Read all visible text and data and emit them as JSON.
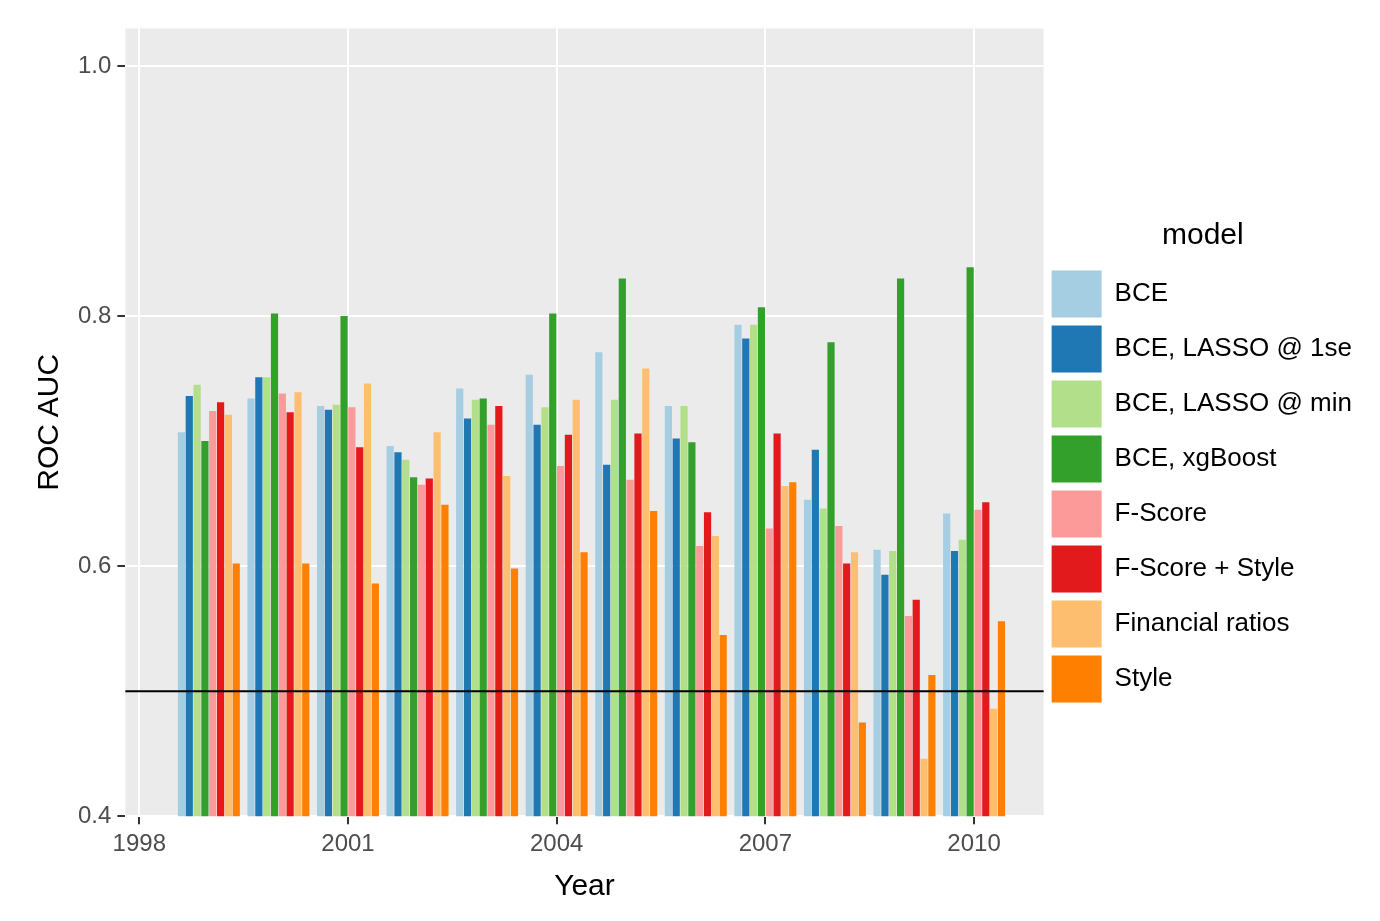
{
  "chart_data": {
    "type": "bar",
    "xlabel": "Year",
    "ylabel": "ROC AUC",
    "legend_title": "model",
    "x": [
      1999,
      2000,
      2001,
      2002,
      2003,
      2004,
      2005,
      2006,
      2007,
      2008,
      2009,
      2010
    ],
    "xlim": [
      1997.8,
      2011.0
    ],
    "xticks": [
      1998,
      2001,
      2004,
      2007,
      2010
    ],
    "ylim": [
      0.4,
      1.03
    ],
    "yticks": [
      {
        "value": 0.4,
        "label": "0.4"
      },
      {
        "value": 0.6,
        "label": "0.6"
      },
      {
        "value": 0.8,
        "label": "0.8"
      },
      {
        "value": 1.0,
        "label": "1.0"
      }
    ],
    "grid": true,
    "legend": "right",
    "ref_lines": [
      {
        "axis": "y",
        "value": 0.5,
        "color": "#000000"
      }
    ],
    "series": [
      {
        "name": "BCE",
        "color": "#a6cee3",
        "values": [
          0.707,
          0.734,
          0.728,
          0.696,
          0.742,
          0.753,
          0.771,
          0.728,
          0.793,
          0.653,
          0.613,
          0.642
        ]
      },
      {
        "name": "BCE, LASSO @ 1se",
        "color": "#1f78b4",
        "values": [
          0.736,
          0.751,
          0.725,
          0.691,
          0.718,
          0.713,
          0.681,
          0.702,
          0.782,
          0.693,
          0.593,
          0.612
        ]
      },
      {
        "name": "BCE, LASSO @ min",
        "color": "#b2df8a",
        "values": [
          0.745,
          0.751,
          0.729,
          0.685,
          0.733,
          0.727,
          0.733,
          0.728,
          0.793,
          0.646,
          0.612,
          0.621
        ]
      },
      {
        "name": "BCE, xgBoost",
        "color": "#33a02c",
        "values": [
          0.7,
          0.802,
          0.8,
          0.671,
          0.734,
          0.802,
          0.83,
          0.699,
          0.807,
          0.779,
          0.83,
          0.839
        ]
      },
      {
        "name": "F-Score",
        "color": "#fb9a99",
        "values": [
          0.724,
          0.738,
          0.727,
          0.665,
          0.713,
          0.68,
          0.669,
          0.616,
          0.63,
          0.632,
          0.56,
          0.645
        ]
      },
      {
        "name": "F-Score + Style",
        "color": "#e31a1c",
        "values": [
          0.731,
          0.723,
          0.695,
          0.67,
          0.728,
          0.705,
          0.706,
          0.643,
          0.706,
          0.602,
          0.573,
          0.651
        ]
      },
      {
        "name": "Financial ratios",
        "color": "#fdbf6f",
        "values": [
          0.721,
          0.739,
          0.746,
          0.707,
          0.672,
          0.733,
          0.758,
          0.624,
          0.664,
          0.611,
          0.446,
          0.486
        ]
      },
      {
        "name": "Style",
        "color": "#ff7f00",
        "values": [
          0.602,
          0.602,
          0.586,
          0.649,
          0.598,
          0.611,
          0.644,
          0.545,
          0.667,
          0.475,
          0.513,
          0.556
        ]
      }
    ]
  }
}
